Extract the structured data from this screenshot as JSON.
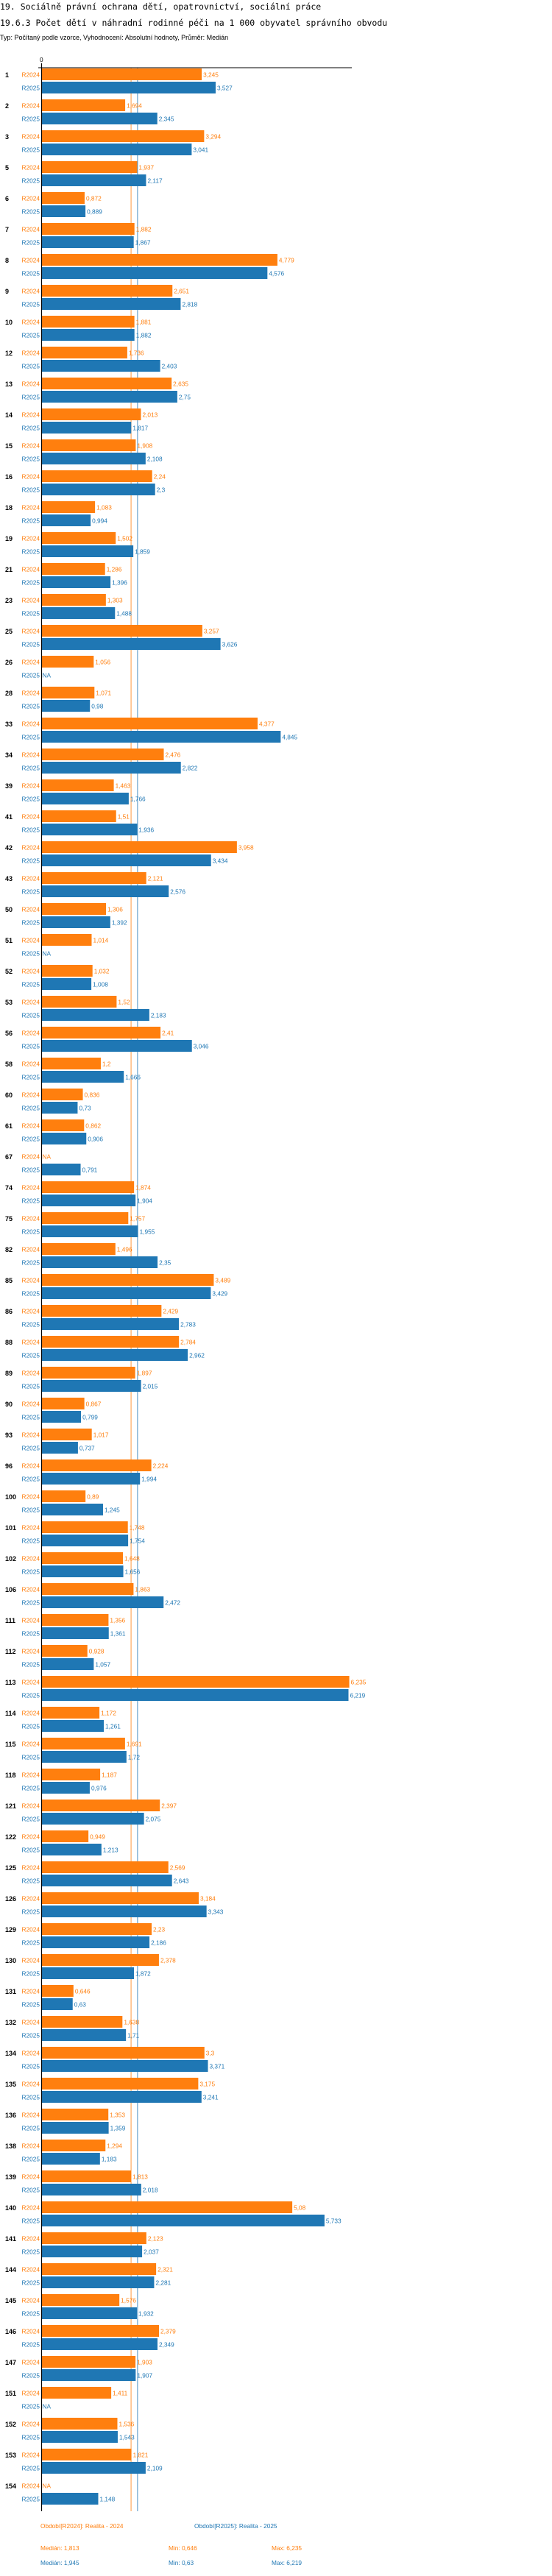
{
  "chart_data": {
    "type": "bar",
    "orientation": "horizontal",
    "title": "19. Sociálně právní ochrana dětí, opatrovnictví, sociální práce",
    "subtitle": "19.6.3 Počet dětí v náhradní rodinné péči na 1 000 obyvatel správního obvodu",
    "description": "Typ: Počítaný podle vzorce, Vyhodnocení: Absolutní hodnoty, Průměr: Medián",
    "x_tick_label": "0",
    "xlim": [
      0,
      6.3
    ],
    "grid": false,
    "colors": {
      "R2024": "#ff7f0e",
      "R2025": "#1f77b4"
    },
    "series_names": [
      "R2024",
      "R2025"
    ],
    "categories": [
      "1",
      "2",
      "3",
      "5",
      "6",
      "7",
      "8",
      "9",
      "10",
      "12",
      "13",
      "14",
      "15",
      "16",
      "18",
      "19",
      "21",
      "23",
      "25",
      "26",
      "28",
      "33",
      "34",
      "39",
      "41",
      "42",
      "43",
      "50",
      "51",
      "52",
      "53",
      "56",
      "58",
      "60",
      "61",
      "67",
      "74",
      "75",
      "82",
      "85",
      "86",
      "88",
      "89",
      "90",
      "93",
      "96",
      "100",
      "101",
      "102",
      "106",
      "111",
      "112",
      "113",
      "114",
      "115",
      "118",
      "121",
      "122",
      "125",
      "126",
      "129",
      "130",
      "131",
      "132",
      "134",
      "135",
      "136",
      "138",
      "139",
      "140",
      "141",
      "144",
      "145",
      "146",
      "147",
      "151",
      "152",
      "153",
      "154"
    ],
    "series": [
      {
        "name": "R2024",
        "values": [
          "3,245",
          "1,694",
          "3,294",
          "1,937",
          "0,872",
          "1,882",
          "4,779",
          "2,651",
          "1,881",
          "1,736",
          "2,635",
          "2,013",
          "1,908",
          "2,24",
          "1,083",
          "1,502",
          "1,286",
          "1,303",
          "3,257",
          "1,056",
          "1,071",
          "4,377",
          "2,476",
          "1,463",
          "1,51",
          "3,958",
          "2,121",
          "1,306",
          "1,014",
          "1,032",
          "1,52",
          "2,41",
          "1,2",
          "0,836",
          "0,862",
          "NA",
          "1,874",
          "1,757",
          "1,496",
          "3,489",
          "2,429",
          "2,784",
          "1,897",
          "0,867",
          "1,017",
          "2,224",
          "0,89",
          "1,748",
          "1,648",
          "1,863",
          "1,356",
          "0,928",
          "6,235",
          "1,172",
          "1,691",
          "1,187",
          "2,397",
          "0,949",
          "2,569",
          "3,184",
          "2,23",
          "2,378",
          "0,646",
          "1,638",
          "3,3",
          "3,175",
          "1,353",
          "1,294",
          "1,813",
          "5,08",
          "2,123",
          "2,321",
          "1,576",
          "2,379",
          "1,903",
          "1,411",
          "1,536",
          "1,821",
          "NA"
        ]
      },
      {
        "name": "R2025",
        "values": [
          "3,527",
          "2,345",
          "3,041",
          "2,117",
          "0,889",
          "1,867",
          "4,576",
          "2,818",
          "1,882",
          "2,403",
          "2,75",
          "1,817",
          "2,108",
          "2,3",
          "0,994",
          "1,859",
          "1,396",
          "1,488",
          "3,626",
          "NA",
          "0,98",
          "4,845",
          "2,822",
          "1,766",
          "1,936",
          "3,434",
          "2,576",
          "1,392",
          "NA",
          "1,008",
          "2,183",
          "3,046",
          "1,666",
          "0,73",
          "0,906",
          "0,791",
          "1,904",
          "1,955",
          "2,35",
          "3,429",
          "2,783",
          "2,962",
          "2,015",
          "0,799",
          "0,737",
          "1,994",
          "1,245",
          "1,754",
          "1,656",
          "2,472",
          "1,361",
          "1,057",
          "6,219",
          "1,261",
          "1,72",
          "0,976",
          "2,075",
          "1,213",
          "2,643",
          "3,343",
          "2,186",
          "1,872",
          "0,63",
          "1,71",
          "3,371",
          "3,241",
          "1,359",
          "1,183",
          "2,018",
          "5,733",
          "2,037",
          "2,281",
          "1,932",
          "2,349",
          "1,907",
          "NA",
          "1,543",
          "2,109",
          "1,148"
        ]
      }
    ],
    "median_lines": {
      "R2024": 1.813,
      "R2025": 1.945
    },
    "legend": {
      "placement": "bottom",
      "R2024": "Období[R2024]: Realita - 2024",
      "R2025": "Období[R2025]: Realita - 2025"
    },
    "stats": {
      "R2024": {
        "median": "Medián: 1,813",
        "min": "Min: 0,646",
        "max": "Max: 6,235"
      },
      "R2025": {
        "median": "Medián: 1,945",
        "min": "Min: 0,63",
        "max": "Max: 6,219"
      }
    }
  }
}
